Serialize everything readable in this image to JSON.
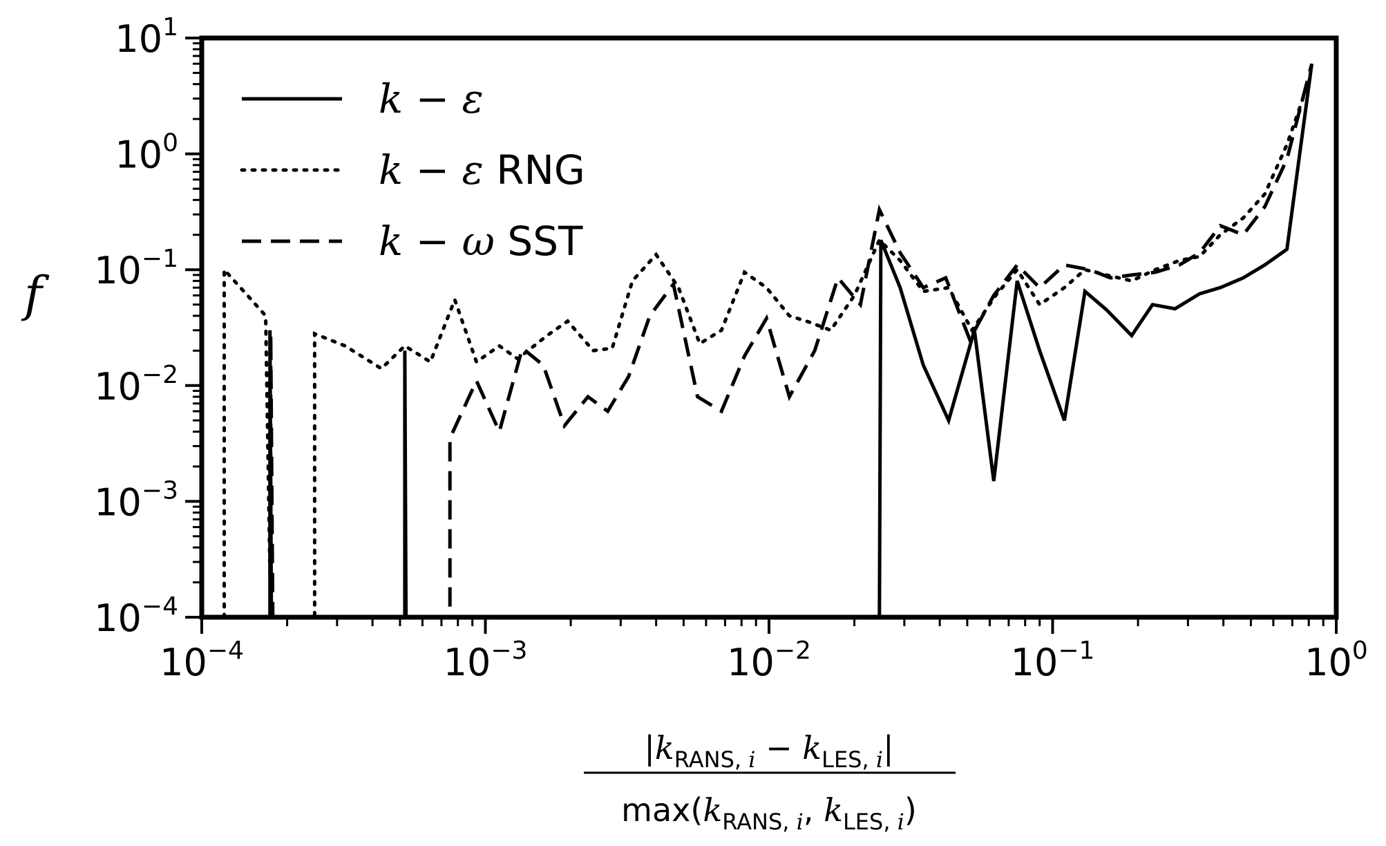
{
  "chart_data": {
    "type": "line",
    "x_scale": "log",
    "y_scale": "log",
    "xlim": [
      0.0001,
      1
    ],
    "ylim": [
      0.0001,
      10
    ],
    "grid": false,
    "legend_position": "top-left",
    "y_symbol": "f",
    "xlabel": {
      "numerator": [
        "|",
        "k",
        "RANS, ",
        "i",
        " − ",
        "k",
        "LES, ",
        "i",
        "|"
      ],
      "denominator": [
        "max(",
        "k",
        "RANS, ",
        "i",
        ", ",
        "k",
        "LES, ",
        "i",
        ")"
      ]
    },
    "x_ticks": [
      {
        "value": 0.0001,
        "base": "10",
        "exp": "−4"
      },
      {
        "value": 0.001,
        "base": "10",
        "exp": "−3"
      },
      {
        "value": 0.01,
        "base": "10",
        "exp": "−2"
      },
      {
        "value": 0.1,
        "base": "10",
        "exp": "−1"
      },
      {
        "value": 1,
        "base": "10",
        "exp": "0"
      }
    ],
    "y_ticks": [
      {
        "value": 0.0001,
        "base": "10",
        "exp": "−4"
      },
      {
        "value": 0.001,
        "base": "10",
        "exp": "−3"
      },
      {
        "value": 0.01,
        "base": "10",
        "exp": "−2"
      },
      {
        "value": 0.1,
        "base": "10",
        "exp": "−1"
      },
      {
        "value": 1,
        "base": "10",
        "exp": "0"
      },
      {
        "value": 10,
        "base": "10",
        "exp": "1"
      }
    ],
    "series": [
      {
        "name": "k − ε",
        "name_parts": [
          "k",
          " − ",
          "ε",
          ""
        ],
        "style": "solid",
        "color": "#000000",
        "points": [
          [
            0.000174,
            0.0001
          ],
          [
            0.000174,
            0.03
          ],
          [
            0.000176,
            0.0001
          ],
          [
            0.00052,
            0.0001
          ],
          [
            0.00052,
            0.02
          ],
          [
            0.000525,
            0.0001
          ],
          [
            0.0245,
            0.0001
          ],
          [
            0.0248,
            0.18
          ],
          [
            0.029,
            0.07
          ],
          [
            0.035,
            0.015
          ],
          [
            0.043,
            0.005
          ],
          [
            0.053,
            0.03
          ],
          [
            0.062,
            0.0015
          ],
          [
            0.075,
            0.08
          ],
          [
            0.09,
            0.02
          ],
          [
            0.11,
            0.005
          ],
          [
            0.13,
            0.065
          ],
          [
            0.155,
            0.045
          ],
          [
            0.19,
            0.027
          ],
          [
            0.225,
            0.05
          ],
          [
            0.27,
            0.046
          ],
          [
            0.33,
            0.062
          ],
          [
            0.39,
            0.07
          ],
          [
            0.47,
            0.085
          ],
          [
            0.56,
            0.11
          ],
          [
            0.67,
            0.15
          ],
          [
            0.82,
            6.0
          ]
        ]
      },
      {
        "name": "k − ε RNG",
        "name_parts": [
          "k",
          " − ",
          "ε",
          " RNG"
        ],
        "style": "dotted",
        "color": "#000000",
        "points": [
          [
            0.00012,
            0.0001
          ],
          [
            0.00012,
            0.1
          ],
          [
            0.000145,
            0.06
          ],
          [
            0.000168,
            0.04
          ],
          [
            0.000175,
            0.0001
          ],
          [
            0.00025,
            0.0001
          ],
          [
            0.00025,
            0.028
          ],
          [
            0.00032,
            0.022
          ],
          [
            0.00043,
            0.014
          ],
          [
            0.00052,
            0.022
          ],
          [
            0.00064,
            0.016
          ],
          [
            0.00078,
            0.055
          ],
          [
            0.00093,
            0.016
          ],
          [
            0.00112,
            0.022
          ],
          [
            0.0013,
            0.017
          ],
          [
            0.00165,
            0.027
          ],
          [
            0.00195,
            0.036
          ],
          [
            0.0024,
            0.02
          ],
          [
            0.0028,
            0.021
          ],
          [
            0.0033,
            0.08
          ],
          [
            0.004,
            0.135
          ],
          [
            0.0048,
            0.07
          ],
          [
            0.0057,
            0.023
          ],
          [
            0.0068,
            0.03
          ],
          [
            0.0082,
            0.095
          ],
          [
            0.0098,
            0.07
          ],
          [
            0.0118,
            0.04
          ],
          [
            0.014,
            0.035
          ],
          [
            0.0165,
            0.03
          ],
          [
            0.02,
            0.06
          ],
          [
            0.0245,
            0.18
          ],
          [
            0.029,
            0.12
          ],
          [
            0.035,
            0.065
          ],
          [
            0.043,
            0.07
          ],
          [
            0.052,
            0.03
          ],
          [
            0.063,
            0.06
          ],
          [
            0.075,
            0.1
          ],
          [
            0.09,
            0.05
          ],
          [
            0.11,
            0.07
          ],
          [
            0.13,
            0.1
          ],
          [
            0.155,
            0.09
          ],
          [
            0.19,
            0.08
          ],
          [
            0.23,
            0.1
          ],
          [
            0.28,
            0.12
          ],
          [
            0.33,
            0.13
          ],
          [
            0.39,
            0.2
          ],
          [
            0.47,
            0.28
          ],
          [
            0.56,
            0.45
          ],
          [
            0.67,
            1.2
          ],
          [
            0.82,
            5.0
          ]
        ]
      },
      {
        "name": "k − ω SST",
        "name_parts": [
          "k",
          " − ",
          "ω",
          " SST"
        ],
        "style": "dashed",
        "color": "#000000",
        "points": [
          [
            0.000175,
            0.0001
          ],
          [
            0.000175,
            0.028
          ],
          [
            0.000178,
            0.0001
          ],
          [
            0.00075,
            0.0001
          ],
          [
            0.00075,
            0.0035
          ],
          [
            0.00093,
            0.011
          ],
          [
            0.00112,
            0.004
          ],
          [
            0.00135,
            0.021
          ],
          [
            0.0016,
            0.015
          ],
          [
            0.0019,
            0.0045
          ],
          [
            0.0023,
            0.008
          ],
          [
            0.0027,
            0.006
          ],
          [
            0.0032,
            0.012
          ],
          [
            0.0038,
            0.04
          ],
          [
            0.0046,
            0.075
          ],
          [
            0.0056,
            0.008
          ],
          [
            0.0068,
            0.006
          ],
          [
            0.0082,
            0.018
          ],
          [
            0.0098,
            0.038
          ],
          [
            0.0118,
            0.008
          ],
          [
            0.0145,
            0.02
          ],
          [
            0.0175,
            0.085
          ],
          [
            0.021,
            0.05
          ],
          [
            0.0245,
            0.33
          ],
          [
            0.029,
            0.14
          ],
          [
            0.035,
            0.07
          ],
          [
            0.042,
            0.085
          ],
          [
            0.051,
            0.025
          ],
          [
            0.062,
            0.06
          ],
          [
            0.075,
            0.11
          ],
          [
            0.09,
            0.07
          ],
          [
            0.11,
            0.11
          ],
          [
            0.135,
            0.1
          ],
          [
            0.16,
            0.085
          ],
          [
            0.19,
            0.09
          ],
          [
            0.23,
            0.095
          ],
          [
            0.28,
            0.11
          ],
          [
            0.33,
            0.14
          ],
          [
            0.39,
            0.24
          ],
          [
            0.47,
            0.2
          ],
          [
            0.56,
            0.35
          ],
          [
            0.67,
            0.9
          ],
          [
            0.82,
            6.0
          ]
        ]
      }
    ]
  }
}
